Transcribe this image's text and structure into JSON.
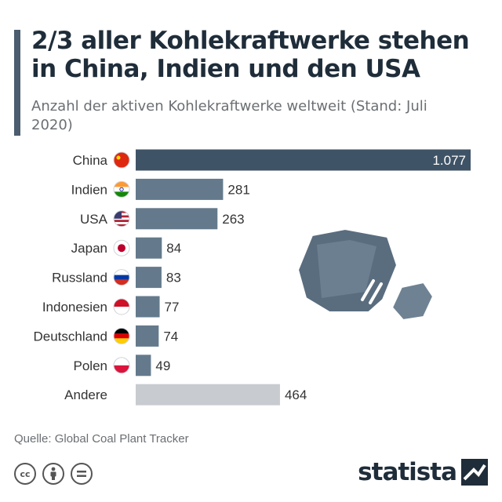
{
  "header": {
    "title": "2/3 aller Kohlekraftwerke stehen in China, Indien und den USA",
    "subtitle": "Anzahl der aktiven Kohlekraftwerke weltweit (Stand: Juli 2020)"
  },
  "footer": {
    "source": "Quelle: Global Coal Plant Tracker",
    "brand": "statista"
  },
  "colors": {
    "highlight": "#3f5366",
    "bar": "#647a8c",
    "other": "#c8ccd0",
    "label": "#333333"
  },
  "chart_data": {
    "type": "bar",
    "orientation": "horizontal",
    "categories": [
      "China",
      "Indien",
      "USA",
      "Japan",
      "Russland",
      "Indonesien",
      "Deutschland",
      "Polen",
      "Andere"
    ],
    "values": [
      1077,
      281,
      263,
      84,
      83,
      77,
      74,
      49,
      464
    ],
    "value_labels": [
      "1.077",
      "281",
      "263",
      "84",
      "83",
      "77",
      "74",
      "49",
      "464"
    ],
    "flags": [
      "china-flag",
      "india-flag",
      "usa-flag",
      "japan-flag",
      "russia-flag",
      "indonesia-flag",
      "germany-flag",
      "poland-flag",
      ""
    ],
    "xlim": [
      0,
      1077
    ],
    "grid": false,
    "legend": "none"
  }
}
